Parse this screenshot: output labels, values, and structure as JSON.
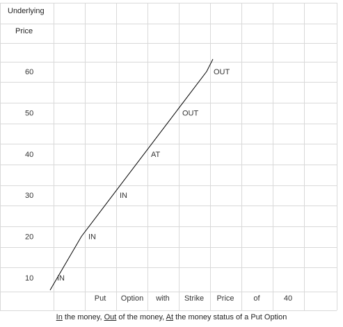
{
  "chart_data": {
    "type": "line",
    "header": [
      "Underlying",
      "Price"
    ],
    "y_ticks": [
      60,
      50,
      40,
      30,
      20,
      10
    ],
    "x_footer": [
      "Put",
      "Option",
      "with",
      "Strike",
      "Price",
      "of",
      "40"
    ],
    "ylim": [
      5,
      65
    ],
    "series": [
      {
        "x": [
          0,
          1,
          2,
          3,
          4,
          5,
          5.2
        ],
        "y": [
          7,
          20,
          30,
          40,
          50,
          60,
          63
        ]
      }
    ],
    "annotations": [
      {
        "x": 0,
        "y": 10,
        "text": "IN"
      },
      {
        "x": 1,
        "y": 20,
        "text": "IN"
      },
      {
        "x": 2,
        "y": 30,
        "text": "IN"
      },
      {
        "x": 3,
        "y": 40,
        "text": "AT"
      },
      {
        "x": 4,
        "y": 50,
        "text": "OUT"
      },
      {
        "x": 5,
        "y": 60,
        "text": "OUT"
      }
    ],
    "grid": true
  },
  "caption": {
    "part1_u": "In",
    "part1": " the money, ",
    "part2_u": "Out",
    "part2": " of the money, ",
    "part3_u": "At",
    "part3": " the money status of a Put Option"
  },
  "colors": {
    "grid": "#d9d9d9",
    "line": "#000000",
    "text": "#333333"
  }
}
